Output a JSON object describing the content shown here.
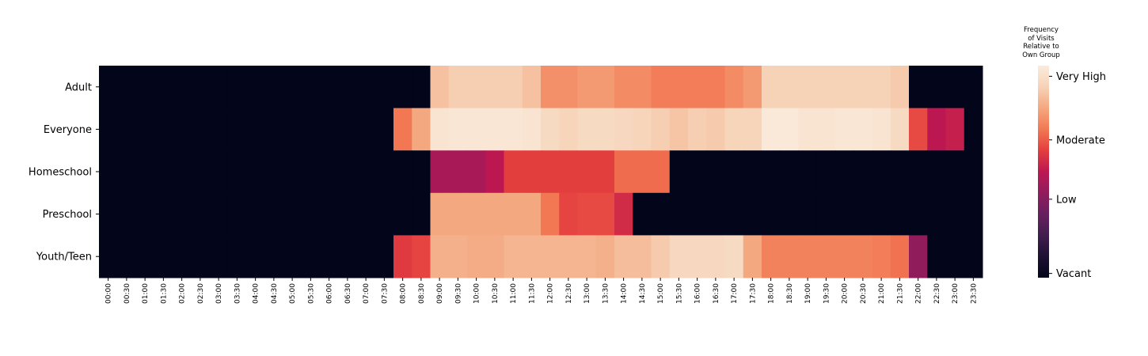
{
  "chart_data": {
    "type": "heatmap",
    "title": "",
    "xlabel": "",
    "ylabel": "",
    "rows": [
      "Adult",
      "Everyone",
      "Homeschool",
      "Preschool",
      "Youth/Teen"
    ],
    "columns": [
      "00:00",
      "00:30",
      "01:00",
      "01:30",
      "02:00",
      "02:30",
      "03:00",
      "03:30",
      "04:00",
      "04:30",
      "05:00",
      "05:30",
      "06:00",
      "06:30",
      "07:00",
      "07:30",
      "08:00",
      "08:30",
      "09:00",
      "09:30",
      "10:00",
      "10:30",
      "11:00",
      "11:30",
      "12:00",
      "12:30",
      "13:00",
      "13:30",
      "14:00",
      "14:30",
      "15:00",
      "15:30",
      "16:00",
      "16:30",
      "17:00",
      "17:30",
      "18:00",
      "18:30",
      "19:00",
      "19:30",
      "20:00",
      "20:30",
      "21:00",
      "21:30",
      "22:00",
      "22:30",
      "23:00",
      "23:30"
    ],
    "value_range": [
      0,
      1
    ],
    "values": [
      [
        0,
        0,
        0,
        0,
        0,
        0,
        0,
        0,
        0,
        0,
        0,
        0,
        0,
        0,
        0,
        0,
        0,
        0,
        0.86,
        0.89,
        0.89,
        0.89,
        0.89,
        0.86,
        0.75,
        0.75,
        0.77,
        0.77,
        0.74,
        0.74,
        0.71,
        0.71,
        0.71,
        0.71,
        0.74,
        0.77,
        0.9,
        0.9,
        0.9,
        0.9,
        0.9,
        0.9,
        0.9,
        0.88,
        0,
        0,
        0,
        0
      ],
      [
        0,
        0,
        0,
        0,
        0,
        0,
        0,
        0,
        0,
        0,
        0,
        0,
        0,
        0,
        0,
        0,
        0.7,
        0.8,
        0.97,
        0.98,
        0.98,
        0.98,
        0.98,
        0.97,
        0.93,
        0.91,
        0.93,
        0.93,
        0.92,
        0.91,
        0.89,
        0.87,
        0.89,
        0.88,
        0.91,
        0.91,
        0.99,
        0.99,
        0.97,
        0.97,
        0.98,
        0.98,
        0.97,
        0.93,
        0.62,
        0.5,
        0.52,
        0
      ],
      [
        0,
        0,
        0,
        0,
        0,
        0,
        0,
        0,
        0,
        0,
        0,
        0,
        0,
        0,
        0,
        0,
        0,
        0,
        0.45,
        0.45,
        0.45,
        0.5,
        0.6,
        0.6,
        0.6,
        0.6,
        0.6,
        0.6,
        0.68,
        0.68,
        0.68,
        0,
        0,
        0,
        0,
        0,
        0,
        0,
        0,
        0,
        0,
        0,
        0,
        0,
        0,
        0,
        0,
        0
      ],
      [
        0,
        0,
        0,
        0,
        0,
        0,
        0,
        0,
        0,
        0,
        0,
        0,
        0,
        0,
        0,
        0,
        0,
        0,
        0.8,
        0.8,
        0.8,
        0.8,
        0.8,
        0.8,
        0.7,
        0.61,
        0.62,
        0.62,
        0.55,
        0,
        0,
        0,
        0,
        0,
        0,
        0,
        0,
        0,
        0,
        0,
        0,
        0,
        0,
        0,
        0,
        0,
        0,
        0
      ],
      [
        0,
        0,
        0,
        0,
        0,
        0,
        0,
        0,
        0,
        0,
        0,
        0,
        0,
        0,
        0,
        0,
        0.59,
        0.61,
        0.82,
        0.82,
        0.81,
        0.81,
        0.83,
        0.83,
        0.83,
        0.83,
        0.83,
        0.82,
        0.85,
        0.85,
        0.88,
        0.92,
        0.92,
        0.92,
        0.93,
        0.8,
        0.72,
        0.72,
        0.72,
        0.72,
        0.72,
        0.72,
        0.71,
        0.69,
        0.4,
        0,
        0,
        0
      ]
    ],
    "colorbar": {
      "title": [
        "Frequency",
        "of Visits",
        "Relative to",
        "Own Group"
      ],
      "ticks": [
        {
          "label": "Very High",
          "value": 0.95
        },
        {
          "label": "Moderate",
          "value": 0.65
        },
        {
          "label": "Low",
          "value": 0.37
        },
        {
          "label": "Vacant",
          "value": 0.02
        }
      ]
    },
    "colormap": "rocket"
  }
}
